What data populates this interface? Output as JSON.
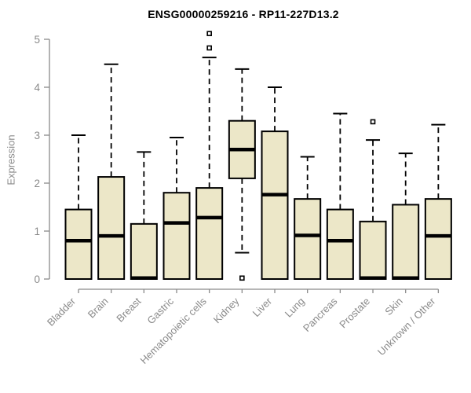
{
  "window": {
    "title": "ENSG00000259216 - RP11-227D13.2"
  },
  "chart_data": {
    "type": "boxplot",
    "title": "ENSG00000259216 - RP11-227D13.2",
    "xlabel": "",
    "ylabel": "Expression",
    "ylim": [
      0,
      5
    ],
    "yticks": [
      0,
      1,
      2,
      3,
      4,
      5
    ],
    "grid": false,
    "legend": "none",
    "categories": [
      "Bladder",
      "Brain",
      "Breast",
      "Gastric",
      "Hematopoietic cells",
      "Kidney",
      "Liver",
      "Lung",
      "Pancreas",
      "Prostate",
      "Skin",
      "Unknown / Other"
    ],
    "series": [
      {
        "label": "Bladder",
        "whisker_low": 0,
        "q1": 0,
        "median": 0.8,
        "q3": 1.45,
        "whisker_high": 3.0,
        "outliers": []
      },
      {
        "label": "Brain",
        "whisker_low": 0,
        "q1": 0,
        "median": 0.9,
        "q3": 2.13,
        "whisker_high": 4.48,
        "outliers": []
      },
      {
        "label": "Breast",
        "whisker_low": 0,
        "q1": 0,
        "median": 0.02,
        "q3": 1.15,
        "whisker_high": 2.65,
        "outliers": []
      },
      {
        "label": "Gastric",
        "whisker_low": 0,
        "q1": 0,
        "median": 1.17,
        "q3": 1.8,
        "whisker_high": 2.95,
        "outliers": []
      },
      {
        "label": "Hematopoietic cells",
        "whisker_low": 0,
        "q1": 0,
        "median": 1.28,
        "q3": 1.9,
        "whisker_high": 4.62,
        "outliers": [
          4.82,
          5.12
        ]
      },
      {
        "label": "Kidney",
        "whisker_low": 0.55,
        "q1": 2.1,
        "median": 2.7,
        "q3": 3.3,
        "whisker_high": 4.38,
        "outliers": [
          0.02
        ]
      },
      {
        "label": "Liver",
        "whisker_low": 0,
        "q1": 0,
        "median": 1.76,
        "q3": 3.08,
        "whisker_high": 4.0,
        "outliers": []
      },
      {
        "label": "Lung",
        "whisker_low": 0,
        "q1": 0,
        "median": 0.91,
        "q3": 1.67,
        "whisker_high": 2.55,
        "outliers": []
      },
      {
        "label": "Pancreas",
        "whisker_low": 0,
        "q1": 0,
        "median": 0.8,
        "q3": 1.45,
        "whisker_high": 3.45,
        "outliers": []
      },
      {
        "label": "Prostate",
        "whisker_low": 0,
        "q1": 0,
        "median": 0.02,
        "q3": 1.2,
        "whisker_high": 2.9,
        "outliers": [
          3.28
        ]
      },
      {
        "label": "Skin",
        "whisker_low": 0,
        "q1": 0,
        "median": 0.02,
        "q3": 1.55,
        "whisker_high": 2.62,
        "outliers": []
      },
      {
        "label": "Unknown / Other",
        "whisker_low": 0,
        "q1": 0,
        "median": 0.9,
        "q3": 1.67,
        "whisker_high": 3.22,
        "outliers": []
      }
    ],
    "colors": {
      "box_fill": "#ECE7C8",
      "box_border": "#000000",
      "median": "#000000",
      "whisker": "#000000",
      "axis": "#8a8a8a",
      "tick_text": "#8a8a8a",
      "title_text": "#000000"
    }
  }
}
